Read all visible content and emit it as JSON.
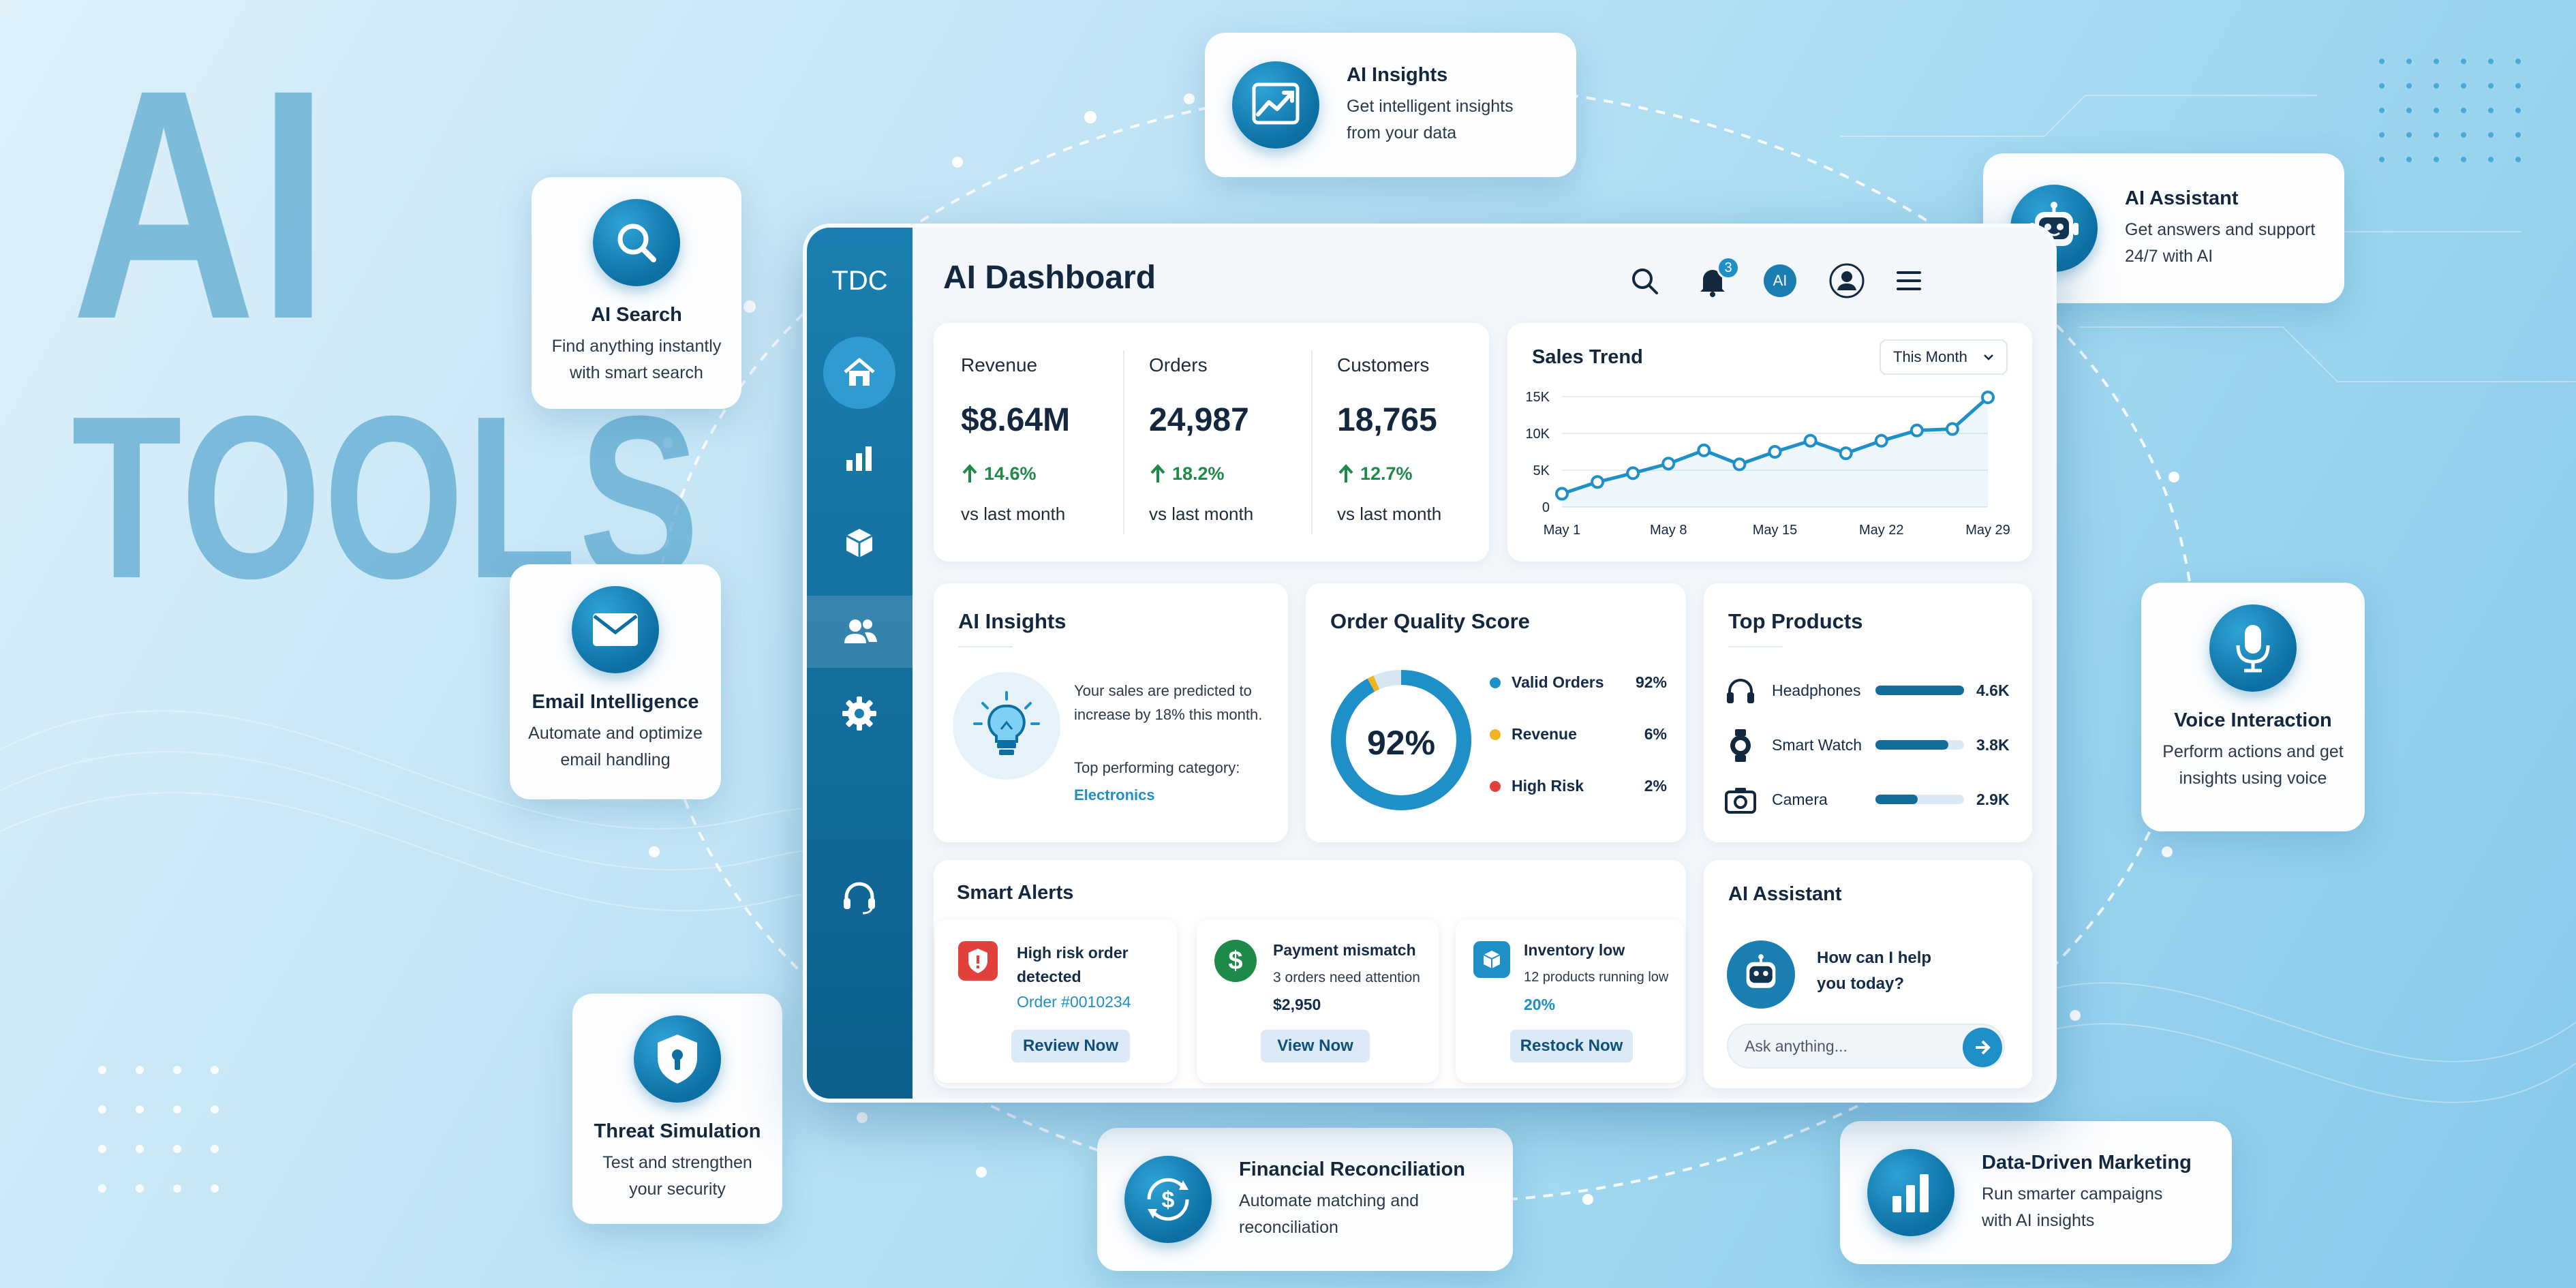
{
  "hero": {
    "line1": "AI",
    "line2": "TOOLS"
  },
  "features": [
    {
      "title": "AI Insights",
      "desc": "Get intelligent insights from your data",
      "icon": "chart-up-icon"
    },
    {
      "title": "AI Search",
      "desc": "Find anything instantly with smart search",
      "icon": "search-icon"
    },
    {
      "title": "AI Assistant",
      "desc": "Get answers and support 24/7 with AI",
      "icon": "robot-icon"
    },
    {
      "title": "Email Intelligence",
      "desc": "Automate and optimize email handling",
      "icon": "mail-icon"
    },
    {
      "title": "Voice Interaction",
      "desc": "Perform actions and get insights using voice",
      "icon": "microphone-icon"
    },
    {
      "title": "Threat Simulation",
      "desc": "Test and strengthen your security",
      "icon": "shield-lock-icon"
    },
    {
      "title": "Financial Reconciliation",
      "desc": "Automate matching and reconciliation",
      "icon": "dollar-cycle-icon"
    },
    {
      "title": "Data-Driven Marketing",
      "desc": "Run smarter campaigns with AI insights",
      "icon": "bar-chart-icon"
    }
  ],
  "dashboard": {
    "logo": "TDC",
    "title": "AI Dashboard",
    "notifications_count": "3",
    "ai_badge": "AI",
    "stats": [
      {
        "label": "Revenue",
        "value": "$8.64M",
        "change": "14.6%",
        "sub": "vs last month"
      },
      {
        "label": "Orders",
        "value": "24,987",
        "change": "18.2%",
        "sub": "vs last month"
      },
      {
        "label": "Customers",
        "value": "18,765",
        "change": "12.7%",
        "sub": "vs last month"
      }
    ],
    "sales_trend": {
      "title": "Sales Trend",
      "period": "This Month"
    },
    "insights": {
      "title": "AI Insights",
      "text": "Your sales are predicted to increase by 18% this month.",
      "cat_label": "Top performing category:",
      "category": "Electronics"
    },
    "quality": {
      "title": "Order Quality Score",
      "score": "92%",
      "rows": [
        {
          "label": "Valid Orders",
          "value": "92%",
          "color": "#1f8fc8"
        },
        {
          "label": "Revenue",
          "value": "6%",
          "color": "#f2b321"
        },
        {
          "label": "High Risk",
          "value": "2%",
          "color": "#e2403a"
        }
      ]
    },
    "products": {
      "title": "Top Products",
      "items": [
        {
          "name": "Headphones",
          "value": "4.6K",
          "level": 1.0,
          "icon": "headphones-icon"
        },
        {
          "name": "Smart Watch",
          "value": "3.8K",
          "level": 0.82,
          "icon": "watch-icon"
        },
        {
          "name": "Camera",
          "value": "2.9K",
          "level": 0.48,
          "icon": "camera-icon"
        }
      ]
    },
    "alerts": {
      "title": "Smart Alerts",
      "items": [
        {
          "title": "High risk order detected",
          "detail": "",
          "value": "Order #0010234",
          "button": "Review Now",
          "icon": "alert-shield-icon"
        },
        {
          "title": "Payment mismatch",
          "detail": "3 orders need attention",
          "value": "$2,950",
          "button": "View Now",
          "icon": "dollar-icon"
        },
        {
          "title": "Inventory low",
          "detail": "12 products running low",
          "value": "20%",
          "button": "Restock Now",
          "icon": "box-icon"
        }
      ]
    },
    "assistant": {
      "title": "AI Assistant",
      "greeting": "How can I help you today?",
      "placeholder": "Ask anything..."
    }
  },
  "chart_data": {
    "type": "line",
    "title": "Sales Trend",
    "x": [
      "May 1",
      "May 3",
      "May 5",
      "May 8",
      "May 10",
      "May 12",
      "May 15",
      "May 17",
      "May 19",
      "May 22",
      "May 24",
      "May 27",
      "May 29"
    ],
    "xticks": [
      "May 1",
      "May 8",
      "May 15",
      "May 22",
      "May 29"
    ],
    "series": [
      {
        "values": [
          1800,
          3400,
          4600,
          5900,
          7700,
          5800,
          7500,
          9000,
          7300,
          9000,
          10400,
          10600,
          14900
        ]
      }
    ],
    "yticks": [
      "0",
      "5K",
      "10K",
      "15K"
    ],
    "ylim": [
      0,
      15000
    ],
    "color": "#1f8fc8",
    "grid": true
  }
}
